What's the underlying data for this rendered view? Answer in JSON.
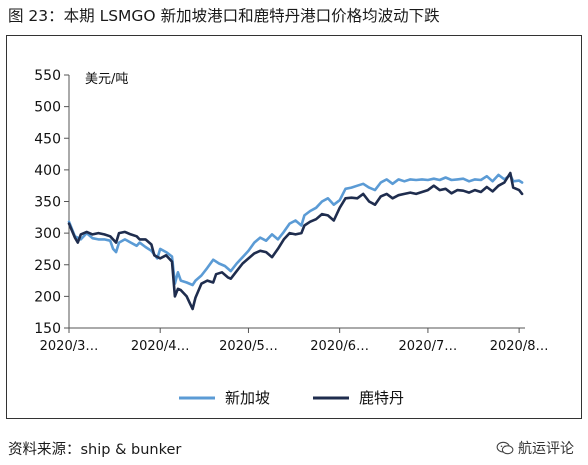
{
  "figure_title": "图 23：本期 LSMGO 新加坡港口和鹿特丹港口价格均波动下跌",
  "source": "资料来源：ship & bunker",
  "watermark": "航运评论",
  "watermark_icon": "wechat-logo-icon",
  "chart_data": {
    "type": "line",
    "ylabel": "美元/吨",
    "ylim": [
      150,
      550
    ],
    "yticks": [
      150,
      200,
      250,
      300,
      350,
      400,
      450,
      500,
      550
    ],
    "grid": false,
    "legend_position": "bottom-center",
    "x_range": [
      0,
      155
    ],
    "x_ticks": [
      {
        "label": "2020/3…",
        "x": 0
      },
      {
        "label": "2020/4…",
        "x": 31
      },
      {
        "label": "2020/5…",
        "x": 61
      },
      {
        "label": "2020/6…",
        "x": 92
      },
      {
        "label": "2020/7…",
        "x": 122
      },
      {
        "label": "2020/8…",
        "x": 153
      }
    ],
    "series": [
      {
        "name": "新加坡",
        "color": "#5b9bd5",
        "points": [
          [
            0,
            318
          ],
          [
            2,
            295
          ],
          [
            4,
            290
          ],
          [
            6,
            300
          ],
          [
            8,
            292
          ],
          [
            10,
            290
          ],
          [
            12,
            290
          ],
          [
            14,
            288
          ],
          [
            15,
            275
          ],
          [
            16,
            270
          ],
          [
            17,
            285
          ],
          [
            19,
            290
          ],
          [
            21,
            285
          ],
          [
            23,
            280
          ],
          [
            24,
            285
          ],
          [
            26,
            278
          ],
          [
            28,
            272
          ],
          [
            30,
            260
          ],
          [
            31,
            275
          ],
          [
            33,
            270
          ],
          [
            35,
            263
          ],
          [
            36,
            220
          ],
          [
            37,
            238
          ],
          [
            38,
            225
          ],
          [
            40,
            222
          ],
          [
            42,
            218
          ],
          [
            43,
            225
          ],
          [
            45,
            233
          ],
          [
            47,
            245
          ],
          [
            49,
            258
          ],
          [
            51,
            252
          ],
          [
            53,
            248
          ],
          [
            55,
            240
          ],
          [
            57,
            252
          ],
          [
            59,
            262
          ],
          [
            61,
            272
          ],
          [
            63,
            285
          ],
          [
            65,
            293
          ],
          [
            67,
            288
          ],
          [
            69,
            298
          ],
          [
            71,
            290
          ],
          [
            73,
            302
          ],
          [
            75,
            315
          ],
          [
            77,
            320
          ],
          [
            79,
            312
          ],
          [
            80,
            328
          ],
          [
            82,
            335
          ],
          [
            84,
            340
          ],
          [
            86,
            350
          ],
          [
            88,
            355
          ],
          [
            90,
            345
          ],
          [
            92,
            352
          ],
          [
            94,
            370
          ],
          [
            96,
            372
          ],
          [
            98,
            375
          ],
          [
            100,
            378
          ],
          [
            102,
            372
          ],
          [
            104,
            368
          ],
          [
            106,
            380
          ],
          [
            108,
            385
          ],
          [
            110,
            378
          ],
          [
            112,
            385
          ],
          [
            114,
            382
          ],
          [
            116,
            385
          ],
          [
            118,
            384
          ],
          [
            120,
            385
          ],
          [
            122,
            384
          ],
          [
            124,
            386
          ],
          [
            126,
            384
          ],
          [
            128,
            388
          ],
          [
            130,
            384
          ],
          [
            132,
            385
          ],
          [
            134,
            386
          ],
          [
            136,
            382
          ],
          [
            138,
            385
          ],
          [
            140,
            384
          ],
          [
            142,
            390
          ],
          [
            144,
            382
          ],
          [
            146,
            392
          ],
          [
            148,
            385
          ],
          [
            150,
            392
          ],
          [
            151,
            382
          ],
          [
            153,
            383
          ],
          [
            154,
            380
          ]
        ]
      },
      {
        "name": "鹿特丹",
        "color": "#1f2d4e",
        "points": [
          [
            0,
            315
          ],
          [
            2,
            293
          ],
          [
            3,
            285
          ],
          [
            4,
            298
          ],
          [
            6,
            302
          ],
          [
            8,
            298
          ],
          [
            10,
            300
          ],
          [
            12,
            298
          ],
          [
            14,
            295
          ],
          [
            16,
            285
          ],
          [
            17,
            300
          ],
          [
            19,
            302
          ],
          [
            21,
            298
          ],
          [
            23,
            295
          ],
          [
            24,
            290
          ],
          [
            26,
            290
          ],
          [
            28,
            282
          ],
          [
            29,
            265
          ],
          [
            31,
            260
          ],
          [
            33,
            265
          ],
          [
            35,
            255
          ],
          [
            36,
            200
          ],
          [
            37,
            212
          ],
          [
            38,
            210
          ],
          [
            40,
            200
          ],
          [
            41,
            190
          ],
          [
            42,
            180
          ],
          [
            43,
            198
          ],
          [
            45,
            220
          ],
          [
            47,
            225
          ],
          [
            49,
            222
          ],
          [
            50,
            235
          ],
          [
            52,
            238
          ],
          [
            54,
            230
          ],
          [
            55,
            228
          ],
          [
            57,
            240
          ],
          [
            59,
            252
          ],
          [
            61,
            260
          ],
          [
            63,
            268
          ],
          [
            65,
            272
          ],
          [
            67,
            270
          ],
          [
            69,
            262
          ],
          [
            71,
            275
          ],
          [
            73,
            290
          ],
          [
            75,
            300
          ],
          [
            77,
            298
          ],
          [
            79,
            300
          ],
          [
            80,
            312
          ],
          [
            82,
            318
          ],
          [
            84,
            322
          ],
          [
            86,
            330
          ],
          [
            88,
            328
          ],
          [
            90,
            320
          ],
          [
            92,
            340
          ],
          [
            94,
            355
          ],
          [
            96,
            356
          ],
          [
            98,
            355
          ],
          [
            100,
            362
          ],
          [
            102,
            350
          ],
          [
            104,
            345
          ],
          [
            106,
            358
          ],
          [
            108,
            362
          ],
          [
            110,
            355
          ],
          [
            112,
            360
          ],
          [
            114,
            362
          ],
          [
            116,
            364
          ],
          [
            118,
            362
          ],
          [
            120,
            365
          ],
          [
            122,
            368
          ],
          [
            124,
            375
          ],
          [
            126,
            368
          ],
          [
            128,
            370
          ],
          [
            130,
            363
          ],
          [
            132,
            368
          ],
          [
            134,
            367
          ],
          [
            136,
            364
          ],
          [
            138,
            368
          ],
          [
            140,
            365
          ],
          [
            142,
            373
          ],
          [
            144,
            366
          ],
          [
            146,
            375
          ],
          [
            148,
            380
          ],
          [
            150,
            395
          ],
          [
            151,
            372
          ],
          [
            153,
            368
          ],
          [
            154,
            362
          ]
        ]
      }
    ]
  }
}
